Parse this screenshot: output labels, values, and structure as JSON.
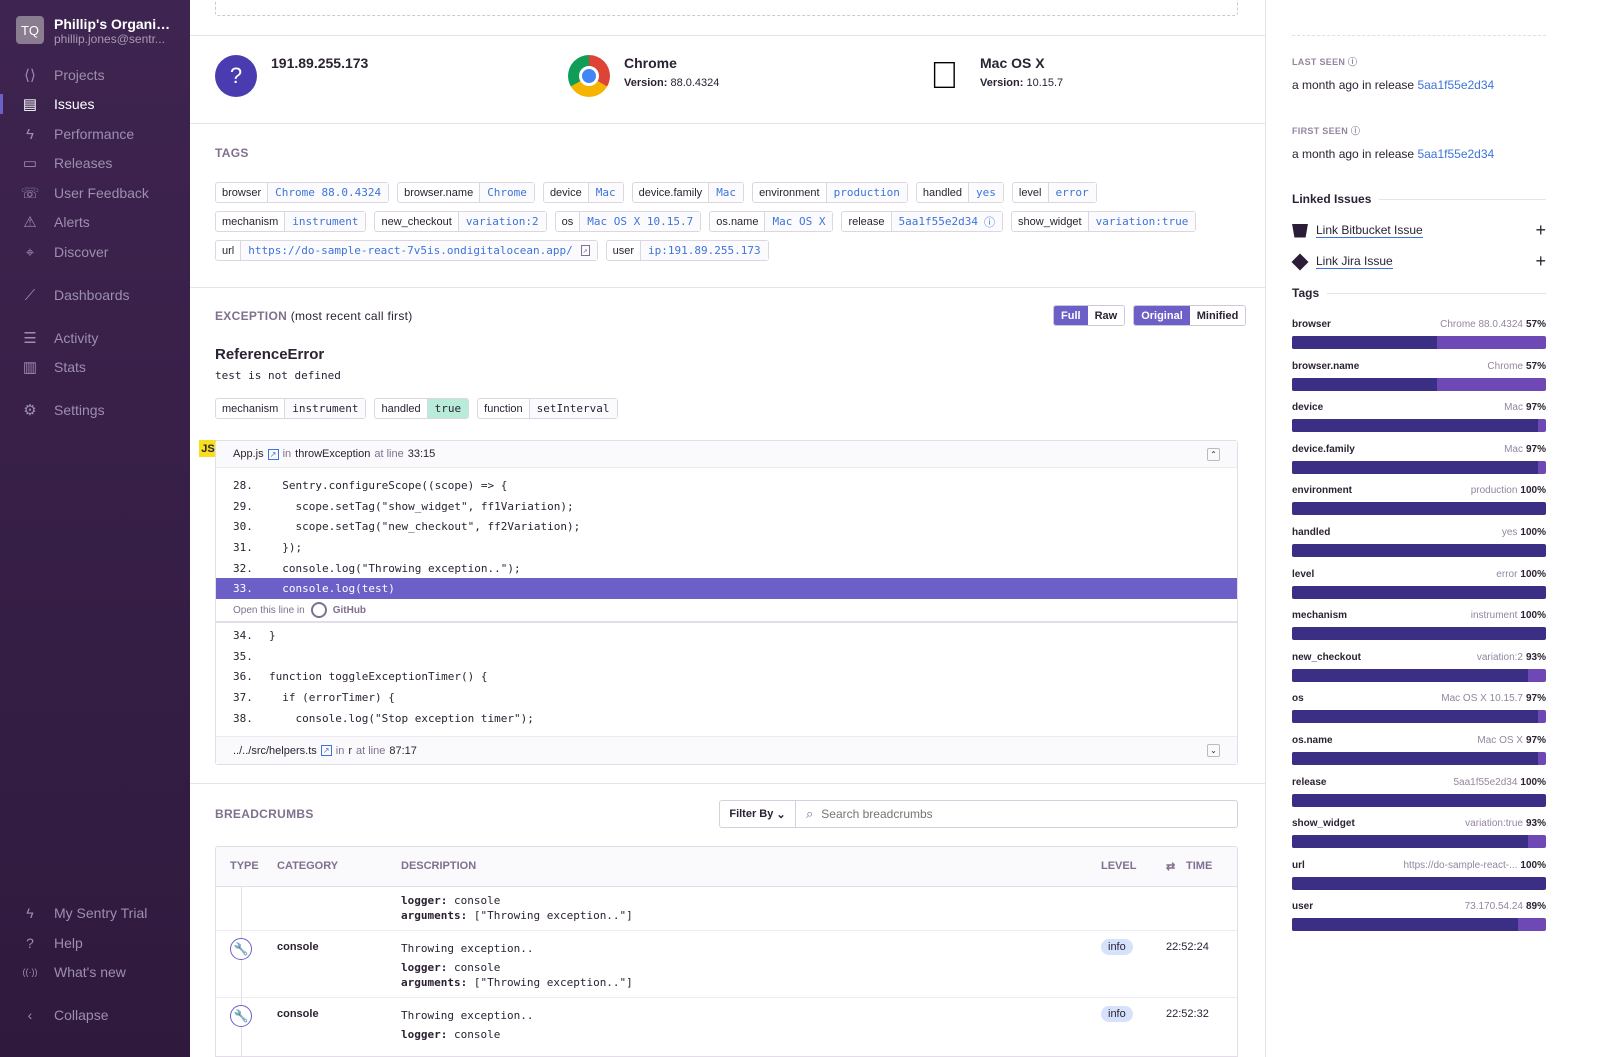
{
  "sidebar": {
    "org_initials": "TQ",
    "org_name": "Phillip's Organiz...",
    "org_email": "phillip.jones@sentr...",
    "items": [
      {
        "label": "Projects",
        "icon": "projects-icon"
      },
      {
        "label": "Issues",
        "icon": "issues-icon"
      },
      {
        "label": "Performance",
        "icon": "performance-icon"
      },
      {
        "label": "Releases",
        "icon": "releases-icon"
      },
      {
        "label": "User Feedback",
        "icon": "user-feedback-icon"
      },
      {
        "label": "Alerts",
        "icon": "alerts-icon"
      },
      {
        "label": "Discover",
        "icon": "discover-icon"
      },
      {
        "label": "Dashboards",
        "icon": "dashboards-icon"
      },
      {
        "label": "Activity",
        "icon": "activity-icon"
      },
      {
        "label": "Stats",
        "icon": "stats-icon"
      },
      {
        "label": "Settings",
        "icon": "settings-icon"
      }
    ],
    "bottom": [
      {
        "label": "My Sentry Trial"
      },
      {
        "label": "Help"
      },
      {
        "label": "What's new"
      },
      {
        "label": "Collapse"
      }
    ]
  },
  "context": {
    "user": {
      "title": "191.89.255.173"
    },
    "browser": {
      "title": "Chrome",
      "version_label": "Version:",
      "version": "88.0.4324"
    },
    "os": {
      "title": "Mac OS X",
      "version_label": "Version:",
      "version": "10.15.7"
    }
  },
  "tags_section": {
    "label": "TAGS",
    "rows": [
      [
        {
          "k": "browser",
          "v": "Chrome 88.0.4324"
        },
        {
          "k": "browser.name",
          "v": "Chrome"
        },
        {
          "k": "device",
          "v": "Mac"
        },
        {
          "k": "device.family",
          "v": "Mac"
        },
        {
          "k": "environment",
          "v": "production"
        },
        {
          "k": "handled",
          "v": "yes"
        },
        {
          "k": "level",
          "v": "error"
        }
      ],
      [
        {
          "k": "mechanism",
          "v": "instrument"
        },
        {
          "k": "new_checkout",
          "v": "variation:2"
        },
        {
          "k": "os",
          "v": "Mac OS X 10.15.7"
        },
        {
          "k": "os.name",
          "v": "Mac OS X"
        },
        {
          "k": "release",
          "v": "5aa1f55e2d34"
        },
        {
          "k": "show_widget",
          "v": "variation:true"
        }
      ],
      [
        {
          "k": "url",
          "v": "https://do-sample-react-7v5is.ondigitalocean.app/"
        },
        {
          "k": "user",
          "v": "ip:191.89.255.173"
        }
      ]
    ]
  },
  "exception": {
    "label": "EXCEPTION",
    "sub": "(most recent call first)",
    "buttons": {
      "full": "Full",
      "raw": "Raw",
      "original": "Original",
      "minified": "Minified"
    },
    "type": "ReferenceError",
    "message": "test is not defined",
    "chips": [
      {
        "k": "mechanism",
        "v": "instrument"
      },
      {
        "k": "handled",
        "v": "true"
      },
      {
        "k": "function",
        "v": "setInterval"
      }
    ],
    "frame": {
      "badge": "JS",
      "file": "App.js",
      "in": "in",
      "function": "throwException",
      "at_line": "at line",
      "line": "33:15",
      "lines_before": [
        {
          "n": "28.",
          "code": "  Sentry.configureScope((scope) => {"
        },
        {
          "n": "29.",
          "code": "    scope.setTag(\"show_widget\", ff1Variation);"
        },
        {
          "n": "30.",
          "code": "    scope.setTag(\"new_checkout\", ff2Variation);"
        },
        {
          "n": "31.",
          "code": "  });"
        },
        {
          "n": "32.",
          "code": "  console.log(\"Throwing exception..\");"
        }
      ],
      "active": {
        "n": "33.",
        "code": "  console.log(test)"
      },
      "open_in": "Open this line in",
      "github": "GitHub",
      "lines_after": [
        {
          "n": "34.",
          "code": "}"
        },
        {
          "n": "35.",
          "code": ""
        },
        {
          "n": "36.",
          "code": "function toggleExceptionTimer() {"
        },
        {
          "n": "37.",
          "code": "  if (errorTimer) {"
        },
        {
          "n": "38.",
          "code": "    console.log(\"Stop exception timer\");"
        }
      ]
    },
    "frame2": {
      "file": "../../src/helpers.ts",
      "in": "in",
      "function": "r",
      "at_line": "at line",
      "line": "87:17"
    }
  },
  "breadcrumbs": {
    "label": "BREADCRUMBS",
    "filter": "Filter By",
    "search_placeholder": "Search breadcrumbs",
    "columns": {
      "type": "TYPE",
      "category": "CATEGORY",
      "description": "DESCRIPTION",
      "level": "LEVEL",
      "time": "TIME"
    },
    "partial": {
      "logger_k": "logger:",
      "logger_v": "console",
      "args_k": "arguments:",
      "args_v": "[\"Throwing exception..\"]"
    },
    "rows": [
      {
        "category": "console",
        "message": "Throwing exception..",
        "logger_k": "logger:",
        "logger_v": "console",
        "args_k": "arguments:",
        "args_v": "[\"Throwing exception..\"]",
        "level": "info",
        "time": "22:52:24"
      },
      {
        "category": "console",
        "message": "Throwing exception..",
        "logger_k": "logger:",
        "logger_v": "console",
        "level": "info",
        "time": "22:52:32"
      }
    ]
  },
  "right": {
    "last_seen": {
      "label": "LAST SEEN",
      "time": "a month ago",
      "in": "in release",
      "release": "5aa1f55e2d34"
    },
    "first_seen": {
      "label": "FIRST SEEN",
      "time": "a month ago",
      "in": "in release",
      "release": "5aa1f55e2d34"
    },
    "linked": {
      "title": "Linked Issues",
      "bitbucket": "Link Bitbucket Issue",
      "jira": "Link Jira Issue"
    },
    "tags_title": "Tags",
    "tags": [
      {
        "name": "browser",
        "value": "Chrome 88.0.4324",
        "pct": "57%",
        "p": 57
      },
      {
        "name": "browser.name",
        "value": "Chrome",
        "pct": "57%",
        "p": 57
      },
      {
        "name": "device",
        "value": "Mac",
        "pct": "97%",
        "p": 97
      },
      {
        "name": "device.family",
        "value": "Mac",
        "pct": "97%",
        "p": 97
      },
      {
        "name": "environment",
        "value": "production",
        "pct": "100%",
        "p": 100
      },
      {
        "name": "handled",
        "value": "yes",
        "pct": "100%",
        "p": 100
      },
      {
        "name": "level",
        "value": "error",
        "pct": "100%",
        "p": 100
      },
      {
        "name": "mechanism",
        "value": "instrument",
        "pct": "100%",
        "p": 100
      },
      {
        "name": "new_checkout",
        "value": "variation:2",
        "pct": "93%",
        "p": 93
      },
      {
        "name": "os",
        "value": "Mac OS X 10.15.7",
        "pct": "97%",
        "p": 97
      },
      {
        "name": "os.name",
        "value": "Mac OS X",
        "pct": "97%",
        "p": 97
      },
      {
        "name": "release",
        "value": "5aa1f55e2d34",
        "pct": "100%",
        "p": 100
      },
      {
        "name": "show_widget",
        "value": "variation:true",
        "pct": "93%",
        "p": 93
      },
      {
        "name": "url",
        "value": "https://do-sample-react-...",
        "pct": "100%",
        "p": 100
      },
      {
        "name": "user",
        "value": "73.170.54.24",
        "pct": "89%",
        "p": 89
      }
    ]
  },
  "colors": {
    "sidebar": "#3e2450",
    "accent": "#6c5fc7",
    "link": "#3d74db",
    "bar_dark": "#3b2f85",
    "bar_light": "#6e48b5"
  }
}
